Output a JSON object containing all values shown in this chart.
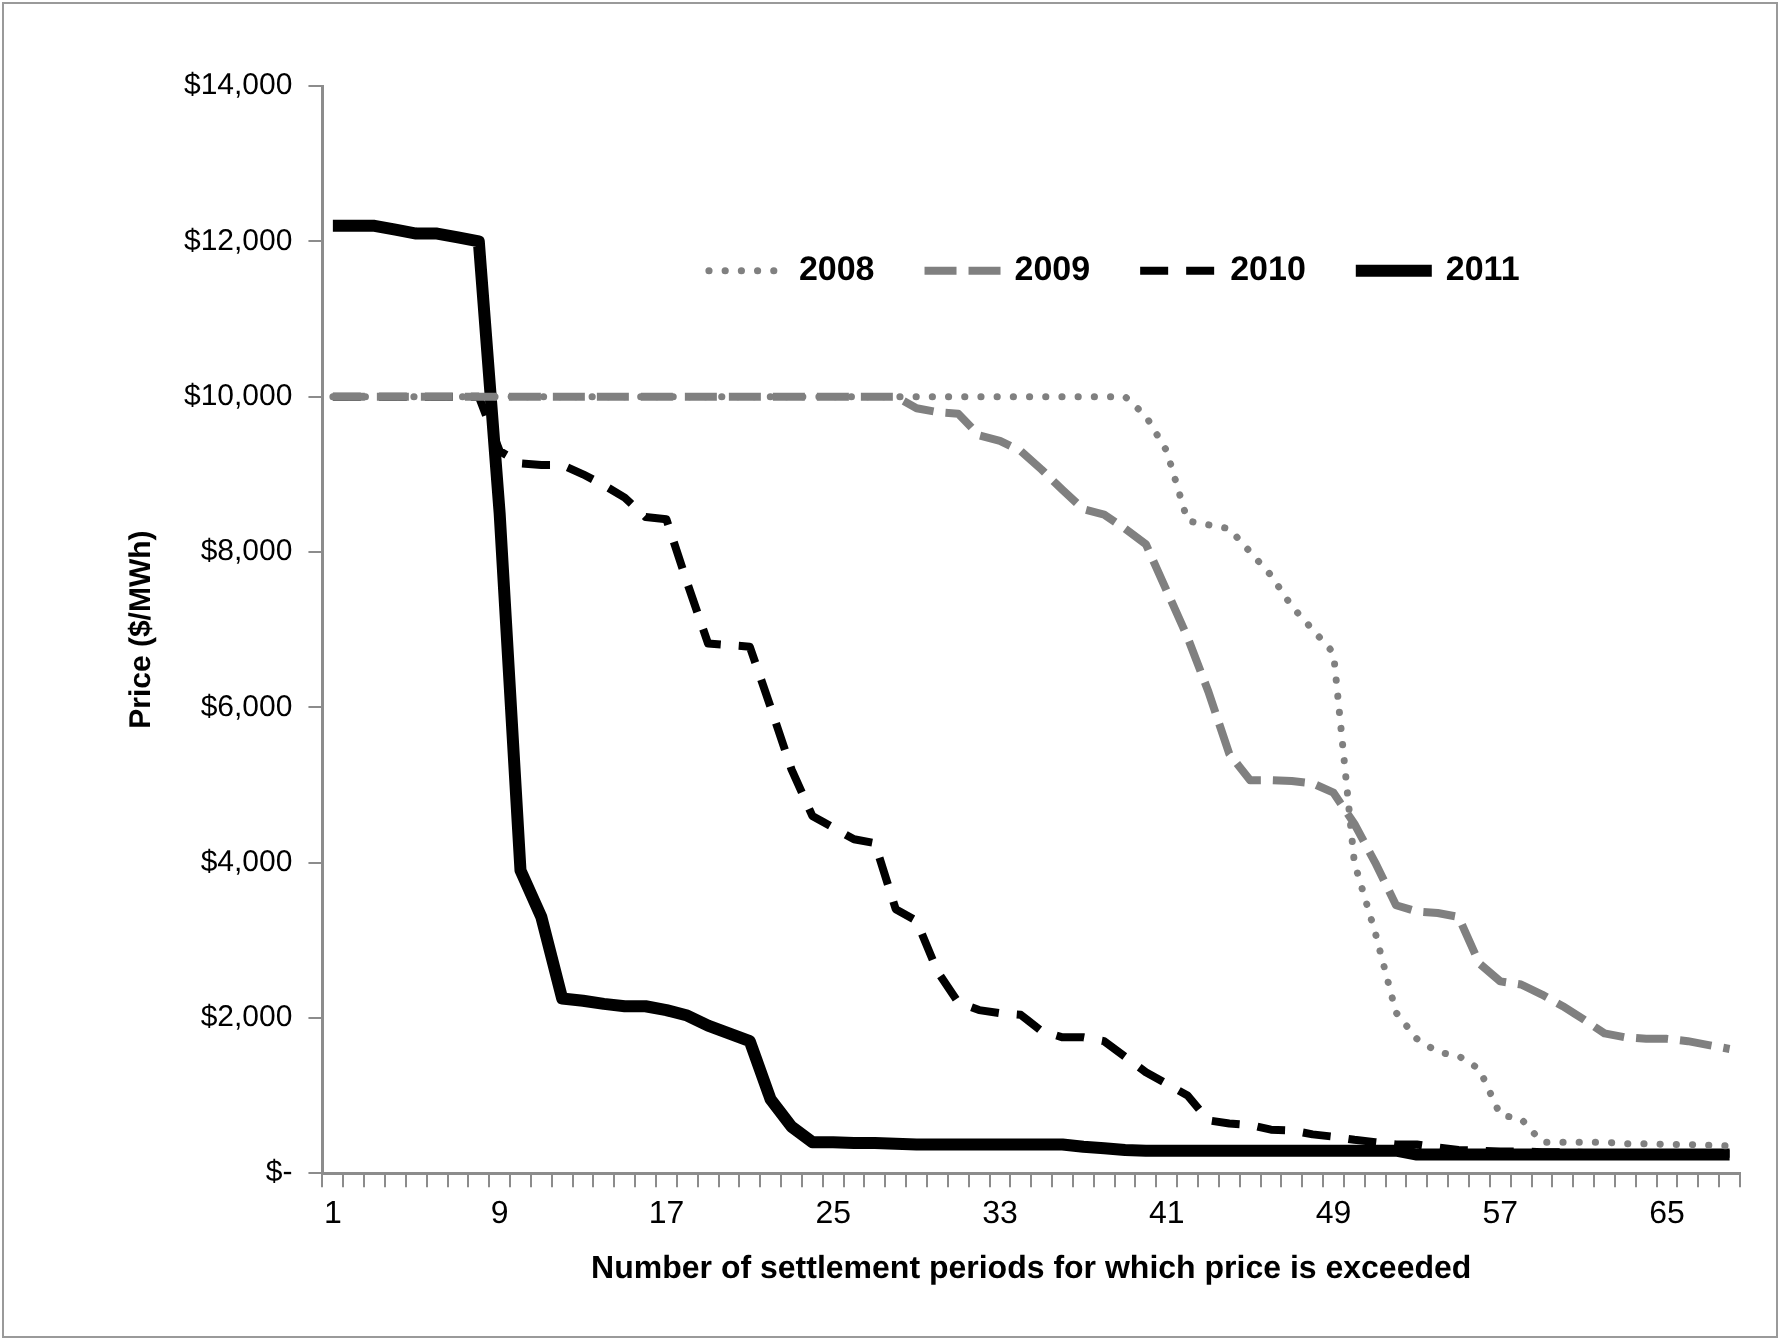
{
  "chart_data": {
    "type": "line",
    "xlabel": "Number of settlement periods for which price is exceeded",
    "ylabel": "Price ($/MWh)",
    "categories": [
      "1",
      null,
      null,
      null,
      null,
      null,
      null,
      null,
      "9",
      null,
      null,
      null,
      null,
      null,
      null,
      null,
      "17",
      null,
      null,
      null,
      null,
      null,
      null,
      null,
      "25",
      null,
      null,
      null,
      null,
      null,
      null,
      null,
      "33",
      null,
      null,
      null,
      null,
      null,
      null,
      null,
      "41",
      null,
      null,
      null,
      null,
      null,
      null,
      null,
      "49",
      null,
      null,
      null,
      null,
      null,
      null,
      null,
      "57",
      null,
      null,
      null,
      null,
      null,
      null,
      null,
      "65",
      null,
      null,
      null
    ],
    "ylim": [
      0,
      14000
    ],
    "yticks": [
      {
        "value": 0,
        "label": "$-"
      },
      {
        "value": 2000,
        "label": "$2,000"
      },
      {
        "value": 4000,
        "label": "$4,000"
      },
      {
        "value": 6000,
        "label": "$6,000"
      },
      {
        "value": 8000,
        "label": "$8,000"
      },
      {
        "value": 10000,
        "label": "$10,000"
      },
      {
        "value": 12000,
        "label": "$12,000"
      },
      {
        "value": 14000,
        "label": "$14,000"
      }
    ],
    "grid": false,
    "legend": "top",
    "marker": "none",
    "series": [
      {
        "name": "2008",
        "color": "#808080",
        "line_style": "dotted",
        "values": [
          10000,
          10000,
          10000,
          10000,
          10000,
          10000,
          10000,
          10000,
          10000,
          10000,
          10000,
          10000,
          10000,
          10000,
          10000,
          10000,
          10000,
          10000,
          10000,
          10000,
          10000,
          10000,
          10000,
          10000,
          10000,
          10000,
          10000,
          10000,
          10000,
          10000,
          10000,
          10000,
          10000,
          10000,
          10000,
          10000,
          10000,
          10000,
          10000,
          9750,
          9300,
          8400,
          8350,
          8300,
          8000,
          7700,
          7300,
          7000,
          6700,
          4000,
          3100,
          2070,
          1730,
          1560,
          1510,
          1340,
          750,
          700,
          400,
          400,
          400,
          400,
          380,
          380,
          370,
          370,
          360,
          350
        ]
      },
      {
        "name": "2009",
        "color": "#808080",
        "line_style": "dashed",
        "values": [
          10000,
          10000,
          10000,
          10000,
          10000,
          10000,
          10000,
          10000,
          10000,
          10000,
          10000,
          10000,
          10000,
          10000,
          10000,
          10000,
          10000,
          10000,
          10000,
          10000,
          10000,
          10000,
          10000,
          10000,
          10000,
          10000,
          10000,
          10000,
          9850,
          9800,
          9780,
          9500,
          9430,
          9300,
          9060,
          8800,
          8550,
          8480,
          8300,
          8100,
          7500,
          6900,
          6200,
          5400,
          5060,
          5060,
          5050,
          5020,
          4900,
          4500,
          4000,
          3450,
          3370,
          3350,
          3300,
          2700,
          2470,
          2430,
          2300,
          2150,
          1980,
          1800,
          1750,
          1730,
          1730,
          1700,
          1650,
          1600
        ]
      },
      {
        "name": "2010",
        "color": "#000000",
        "line_style": "dashed",
        "values": [
          10000,
          10000,
          10000,
          10000,
          10000,
          10000,
          10000,
          10000,
          9300,
          9140,
          9120,
          9120,
          9000,
          8860,
          8700,
          8450,
          8420,
          7600,
          6820,
          6800,
          6780,
          6000,
          5200,
          4600,
          4450,
          4300,
          4250,
          3400,
          3250,
          2600,
          2200,
          2100,
          2060,
          2040,
          1830,
          1750,
          1750,
          1700,
          1500,
          1300,
          1150,
          1000,
          680,
          640,
          620,
          560,
          550,
          500,
          470,
          430,
          400,
          370,
          370,
          330,
          300,
          290,
          280,
          280,
          270,
          270,
          260,
          260,
          260,
          250,
          250,
          250,
          250,
          250
        ]
      },
      {
        "name": "2011",
        "color": "#000000",
        "line_style": "solid",
        "values": [
          12200,
          12200,
          12200,
          12150,
          12100,
          12100,
          12050,
          12000,
          8500,
          3900,
          3300,
          2250,
          2220,
          2180,
          2150,
          2150,
          2100,
          2030,
          1900,
          1800,
          1700,
          950,
          600,
          400,
          400,
          390,
          390,
          380,
          370,
          370,
          370,
          370,
          370,
          370,
          370,
          370,
          340,
          320,
          300,
          290,
          290,
          290,
          290,
          290,
          290,
          290,
          290,
          290,
          290,
          290,
          290,
          290,
          240,
          240,
          240,
          240,
          240,
          240,
          240,
          240,
          240,
          240,
          240,
          240,
          240,
          240,
          240,
          240
        ]
      }
    ]
  }
}
